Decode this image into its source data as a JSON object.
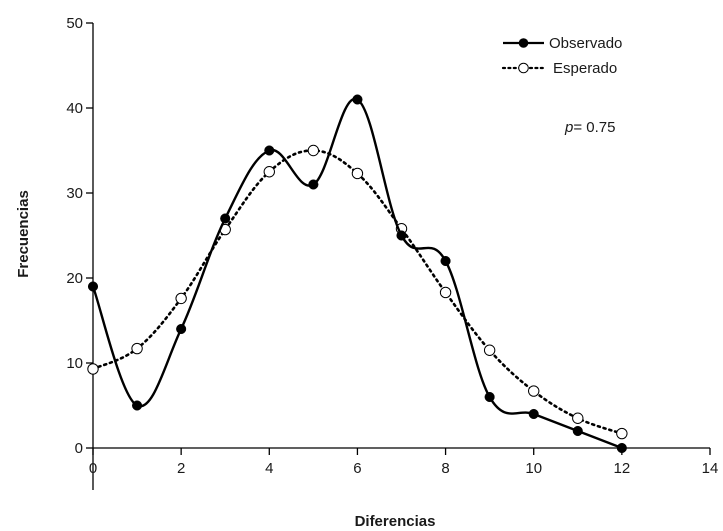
{
  "chart_data": {
    "type": "line",
    "xlabel": "Diferencias",
    "ylabel": "Frecuencias",
    "xlim": [
      0,
      14
    ],
    "ylim": [
      0,
      50
    ],
    "xticks": [
      "0",
      "2",
      "4",
      "6",
      "8",
      "10",
      "12",
      "14"
    ],
    "yticks": [
      "0",
      "10",
      "20",
      "30",
      "40",
      "50"
    ],
    "grid": false,
    "legend_position": "top-right",
    "annotation": {
      "italic": "p",
      "text": "= 0.75"
    },
    "series": [
      {
        "name": "Observado",
        "style": "solid",
        "marker": "filled-circle",
        "color": "#000000",
        "x": [
          0,
          1,
          2,
          3,
          4,
          5,
          6,
          7,
          8,
          9,
          10,
          11,
          12
        ],
        "y": [
          19,
          5,
          14,
          27,
          35,
          31,
          41,
          25,
          22,
          6,
          4,
          2,
          0
        ]
      },
      {
        "name": "Esperado",
        "style": "dotted",
        "marker": "open-circle",
        "color": "#000000",
        "x": [
          0,
          1,
          2,
          3,
          4,
          5,
          6,
          7,
          8,
          9,
          10,
          11,
          12
        ],
        "y": [
          9.3,
          11.7,
          17.6,
          25.7,
          32.5,
          35,
          32.3,
          25.8,
          18.3,
          11.5,
          6.7,
          3.5,
          1.7
        ]
      }
    ]
  }
}
